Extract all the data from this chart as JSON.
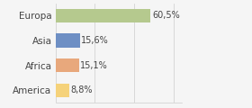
{
  "categories": [
    "Europa",
    "Asia",
    "Africa",
    "America"
  ],
  "values": [
    60.5,
    15.6,
    15.1,
    8.8
  ],
  "labels": [
    "60,5%",
    "15,6%",
    "15,1%",
    "8,8%"
  ],
  "bar_colors": [
    "#b5c98e",
    "#6e8fc4",
    "#e8a87c",
    "#f5d27a"
  ],
  "background_color": "#f5f5f5",
  "xlim": [
    0,
    80
  ],
  "xticks": [
    0,
    25,
    50,
    75
  ],
  "figsize": [
    2.8,
    1.2
  ],
  "dpi": 100,
  "bar_height": 0.55,
  "label_fontsize": 7.0,
  "ytick_fontsize": 7.5
}
